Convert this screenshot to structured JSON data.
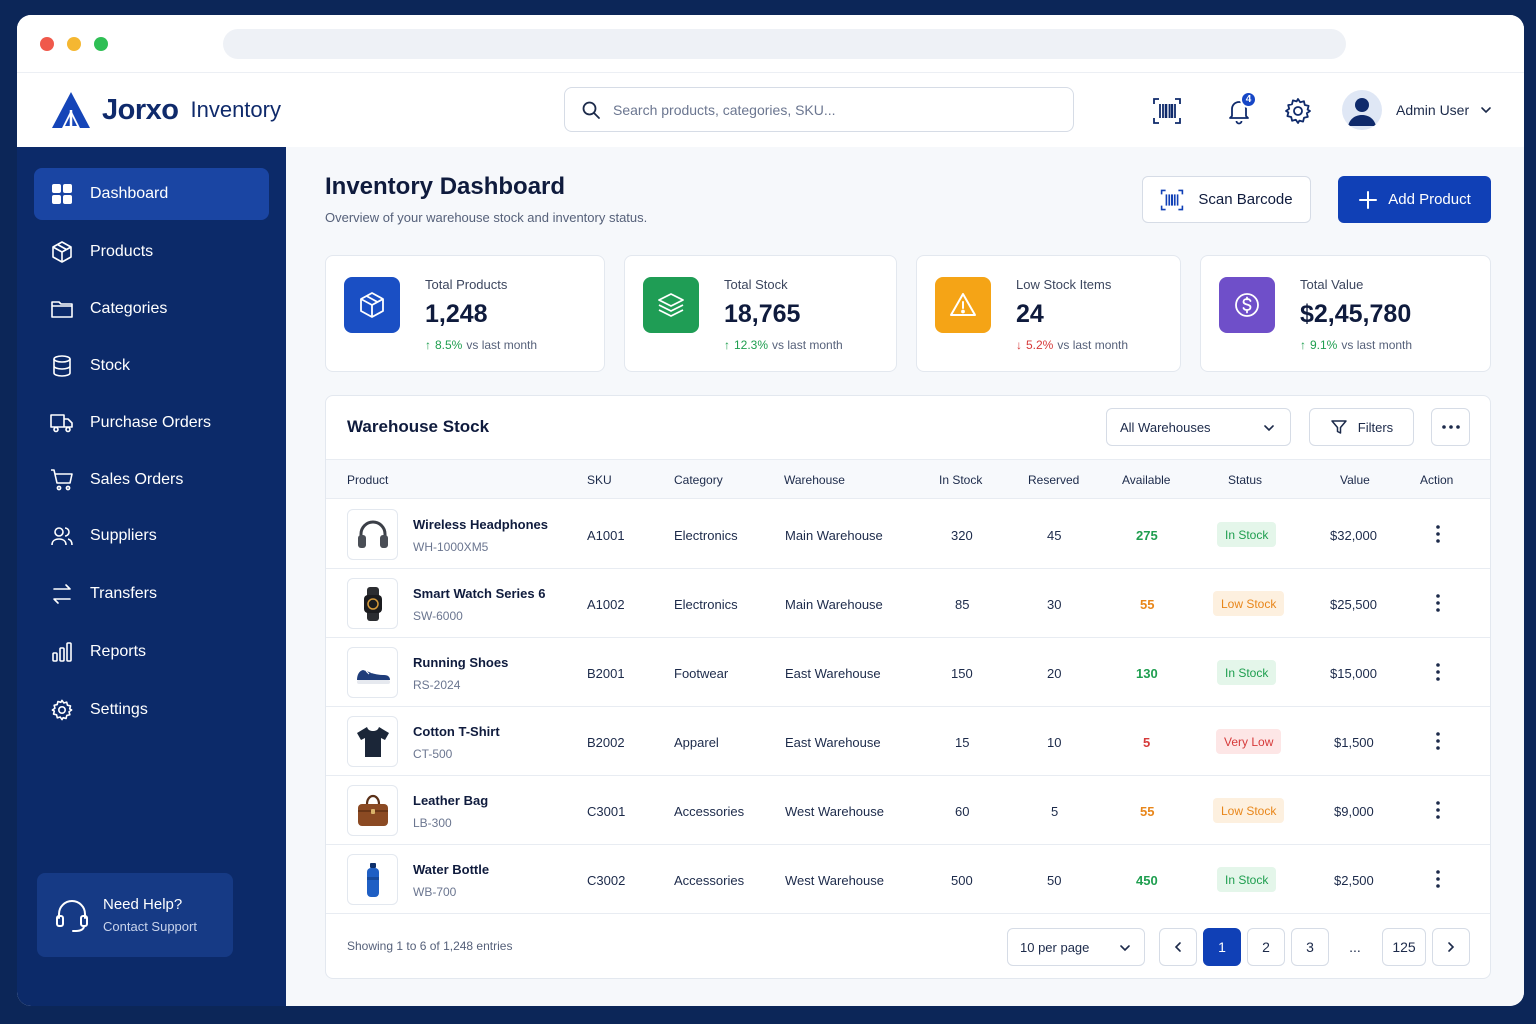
{
  "header": {
    "brand": "Jorxo",
    "brand_sub": "Inventory",
    "search_placeholder": "Search products, categories, SKU...",
    "notification_count": "4",
    "user_name": "Admin User"
  },
  "sidebar": {
    "items": [
      {
        "label": "Dashboard",
        "icon": "dashboard-icon"
      },
      {
        "label": "Products",
        "icon": "box-icon"
      },
      {
        "label": "Categories",
        "icon": "folder-icon"
      },
      {
        "label": "Stock",
        "icon": "database-icon"
      },
      {
        "label": "Purchase Orders",
        "icon": "truck-icon"
      },
      {
        "label": "Sales Orders",
        "icon": "cart-icon"
      },
      {
        "label": "Suppliers",
        "icon": "users-icon"
      },
      {
        "label": "Transfers",
        "icon": "transfer-icon"
      },
      {
        "label": "Reports",
        "icon": "bar-chart-icon"
      },
      {
        "label": "Settings",
        "icon": "gear-icon"
      }
    ],
    "help_title": "Need Help?",
    "help_link": "Contact Support"
  },
  "main": {
    "title": "Inventory Dashboard",
    "subtitle": "Overview of your warehouse stock and inventory status.",
    "scan_label": "Scan Barcode",
    "add_label": "Add Product"
  },
  "cards": [
    {
      "label": "Total Products",
      "value": "1,248",
      "trend": "8.5%",
      "direction": "up",
      "note": "vs last month",
      "color": "#1a4fc4",
      "icon": "cube-icon"
    },
    {
      "label": "Total Stock",
      "value": "18,765",
      "trend": "12.3%",
      "direction": "up",
      "note": "vs last month",
      "color": "#1f9d55",
      "icon": "layers-icon"
    },
    {
      "label": "Low Stock Items",
      "value": "24",
      "trend": "5.2%",
      "direction": "down",
      "note": "vs last month",
      "color": "#f5a416",
      "icon": "warning-icon"
    },
    {
      "label": "Total Value",
      "value": "$2,45,780",
      "trend": "9.1%",
      "direction": "up",
      "note": "vs last month",
      "color": "#6f4fc9",
      "icon": "dollar-icon"
    }
  ],
  "table": {
    "title": "Warehouse Stock",
    "warehouse_filter": "All Warehouses",
    "filters_label": "Filters",
    "columns": [
      "Product",
      "SKU",
      "Category",
      "Warehouse",
      "In Stock",
      "Reserved",
      "Available",
      "Status",
      "Value",
      "Action"
    ],
    "rows": [
      {
        "name": "Wireless Headphones",
        "code": "WH-1000XM5",
        "sku": "A1001",
        "category": "Electronics",
        "warehouse": "Main Warehouse",
        "in_stock": "320",
        "reserved": "45",
        "available": "275",
        "status": "In Stock",
        "status_type": "in",
        "value": "$32,000",
        "thumb": "headphones-icon"
      },
      {
        "name": "Smart Watch Series 6",
        "code": "SW-6000",
        "sku": "A1002",
        "category": "Electronics",
        "warehouse": "Main Warehouse",
        "in_stock": "85",
        "reserved": "30",
        "available": "55",
        "status": "Low Stock",
        "status_type": "low",
        "value": "$25,500",
        "thumb": "watch-icon"
      },
      {
        "name": "Running Shoes",
        "code": "RS-2024",
        "sku": "B2001",
        "category": "Footwear",
        "warehouse": "East Warehouse",
        "in_stock": "150",
        "reserved": "20",
        "available": "130",
        "status": "In Stock",
        "status_type": "in",
        "value": "$15,000",
        "thumb": "shoe-icon"
      },
      {
        "name": "Cotton T-Shirt",
        "code": "CT-500",
        "sku": "B2002",
        "category": "Apparel",
        "warehouse": "East Warehouse",
        "in_stock": "15",
        "reserved": "10",
        "available": "5",
        "status": "Very Low",
        "status_type": "vlow",
        "value": "$1,500",
        "thumb": "tshirt-icon"
      },
      {
        "name": "Leather Bag",
        "code": "LB-300",
        "sku": "C3001",
        "category": "Accessories",
        "warehouse": "West Warehouse",
        "in_stock": "60",
        "reserved": "5",
        "available": "55",
        "status": "Low Stock",
        "status_type": "low",
        "value": "$9,000",
        "thumb": "bag-icon"
      },
      {
        "name": "Water Bottle",
        "code": "WB-700",
        "sku": "C3002",
        "category": "Accessories",
        "warehouse": "West Warehouse",
        "in_stock": "500",
        "reserved": "50",
        "available": "450",
        "status": "In Stock",
        "status_type": "in",
        "value": "$2,500",
        "thumb": "bottle-icon"
      }
    ],
    "footer_text": "Showing 1 to 6 of 1,248 entries",
    "per_page": "10 per page",
    "pages": [
      "1",
      "2",
      "3",
      "...",
      "125"
    ],
    "current_page": "1"
  },
  "colors": {
    "sidebar_bg": "#0c2a69",
    "accent": "#1040b6",
    "in_stock": "#1e9e4f",
    "low_stock": "#e8861a",
    "very_low": "#d63a3a"
  }
}
